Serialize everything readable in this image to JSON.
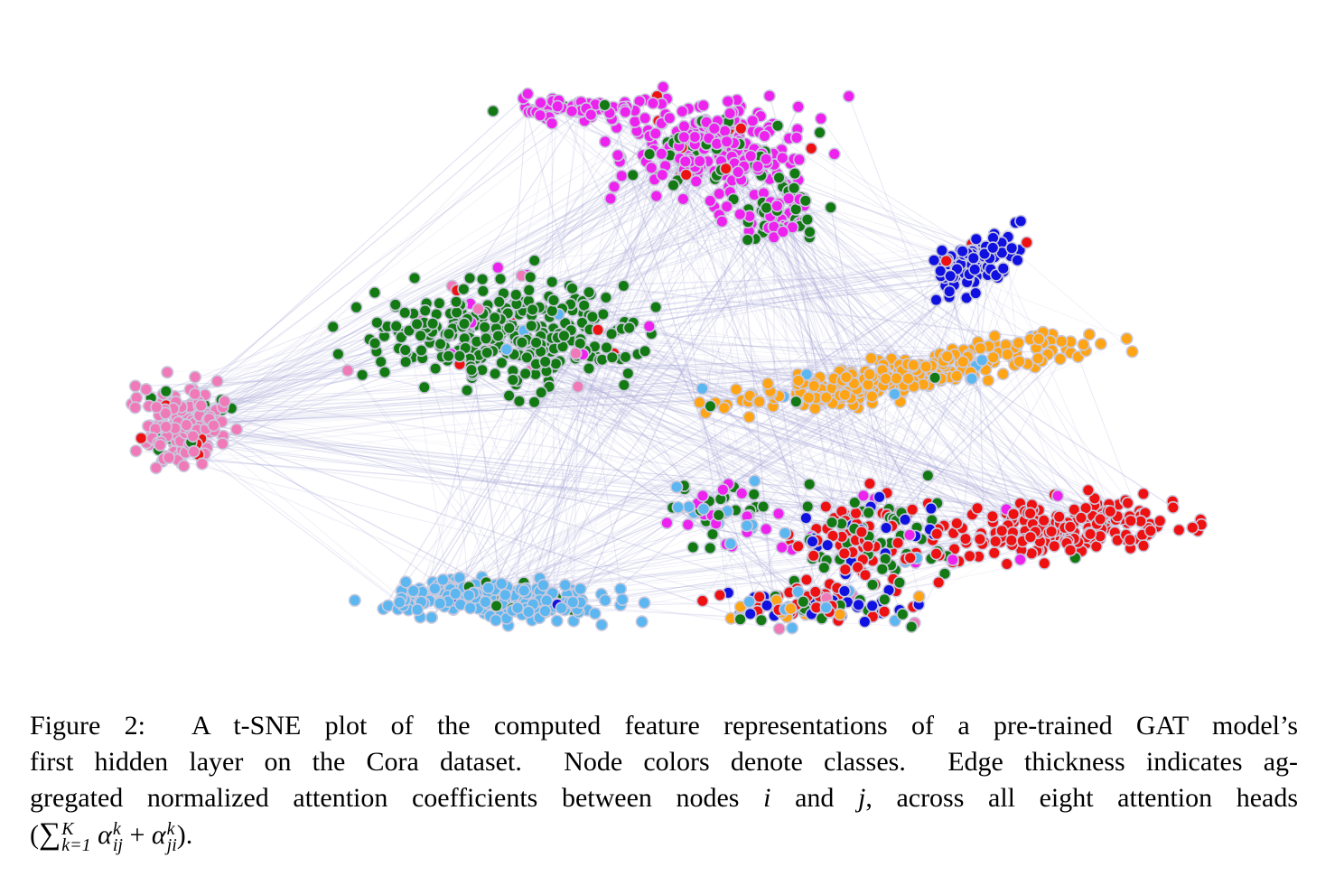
{
  "caption": {
    "label": "Figure 2:",
    "lines": [
      "A t-SNE plot of the computed feature representations of a pre-trained GAT model’s",
      "first hidden layer on the Cora dataset.  Node colors denote classes.  Edge thickness indicates ag-",
      "gregated normalized attention coefficients between nodes"
    ],
    "var_i": "i",
    "and": "and",
    "var_j": "j",
    "tail": ", across all eight attention heads",
    "formula": {
      "open": "(",
      "sum": "∑",
      "upper": "K",
      "lower": "k=1",
      "alpha": "α",
      "sup": "k",
      "sub1": "ij",
      "plus": "+",
      "sub2": "ji",
      "close": ")."
    }
  }
}
